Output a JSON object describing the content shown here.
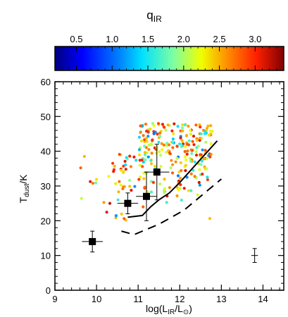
{
  "chart_data": {
    "type": "scatter",
    "xlabel_main": "log(L",
    "xlabel_sub": "IR",
    "xlabel_mid": "/L",
    "xlabel_sub2": "⊙",
    "xlabel_end": ")",
    "ylabel_main": "T",
    "ylabel_sub": "dust",
    "ylabel_end": "/K",
    "xlim": [
      9,
      14.5
    ],
    "ylim": [
      0,
      60
    ],
    "xticks": [
      "9",
      "10",
      "11",
      "12",
      "13",
      "14"
    ],
    "yticks": [
      "0",
      "10",
      "20",
      "30",
      "40",
      "50",
      "60"
    ],
    "colorbar": {
      "title_main": "q",
      "title_sub": "IR",
      "range": [
        0.2,
        3.4
      ],
      "ticks": [
        "0.5",
        "1.0",
        "1.5",
        "2.0",
        "2.5",
        "3.0"
      ],
      "colormap": "rainbow"
    },
    "stacked_points": [
      {
        "x": 9.9,
        "y": 14,
        "xerr": 0.25,
        "yerr": 3
      },
      {
        "x": 10.75,
        "y": 25,
        "xerr": 0.25,
        "yerr": 3
      },
      {
        "x": 11.2,
        "y": 27,
        "xerr": 0.25,
        "yerr": 7
      },
      {
        "x": 11.45,
        "y": 34,
        "xerr": 0.3,
        "yerr": 8
      }
    ],
    "typical_error": {
      "x": 13.8,
      "y": 10,
      "xerr": 0.08,
      "yerr": 2
    },
    "solid_curve": [
      [
        10.75,
        21
      ],
      [
        11.1,
        21.5
      ],
      [
        11.3,
        24
      ],
      [
        11.5,
        26
      ],
      [
        11.75,
        28
      ],
      [
        12.0,
        31
      ],
      [
        12.3,
        35
      ],
      [
        12.6,
        39
      ],
      [
        12.9,
        43
      ]
    ],
    "dashed_curve": [
      [
        10.6,
        17
      ],
      [
        10.9,
        16
      ],
      [
        11.2,
        17.5
      ],
      [
        11.5,
        19
      ],
      [
        11.8,
        21
      ],
      [
        12.1,
        23
      ],
      [
        12.4,
        26
      ],
      [
        12.7,
        29
      ],
      [
        13.0,
        32
      ]
    ],
    "scatter_q_distribution": "mostly 1.8–3.2 (yellow/orange/red), few 1.0–1.6 (cyan/green)",
    "scatter_count": 300
  }
}
